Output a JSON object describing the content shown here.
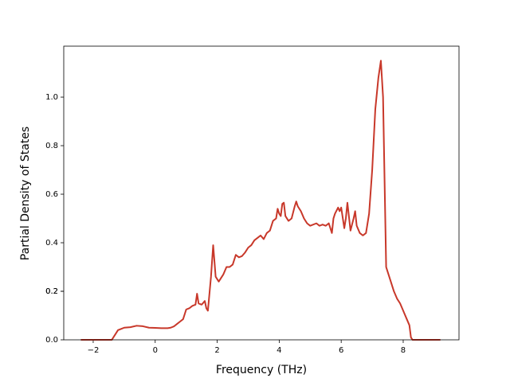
{
  "chart_data": {
    "type": "line",
    "xlabel": "Frequency (THz)",
    "ylabel": "Partial Density of States",
    "xlim": [
      -2.95,
      9.8
    ],
    "ylim": [
      0,
      1.21
    ],
    "xticks": [
      {
        "value": -2,
        "label": "−2"
      },
      0,
      2,
      4,
      6,
      8
    ],
    "yticks": [
      {
        "value": 0,
        "label": "0.0"
      },
      0.2,
      0.4,
      0.6,
      0.8,
      {
        "value": 1,
        "label": "1.0"
      },
      0.2
    ],
    "x": [
      -2.4,
      -1.4,
      -1.3,
      -1.2,
      -1.1,
      -1.0,
      -0.8,
      -0.6,
      -0.4,
      -0.2,
      0,
      0.2,
      0.4,
      0.5,
      0.6,
      0.7,
      0.8,
      0.9,
      1.0,
      1.1,
      1.2,
      1.3,
      1.35,
      1.4,
      1.5,
      1.6,
      1.65,
      1.7,
      1.8,
      1.87,
      1.95,
      2.05,
      2.2,
      2.3,
      2.4,
      2.5,
      2.6,
      2.7,
      2.8,
      2.9,
      3.0,
      3.1,
      3.2,
      3.3,
      3.4,
      3.5,
      3.6,
      3.7,
      3.8,
      3.9,
      3.95,
      4.0,
      4.05,
      4.1,
      4.15,
      4.2,
      4.3,
      4.4,
      4.5,
      4.55,
      4.6,
      4.7,
      4.8,
      4.9,
      5.0,
      5.2,
      5.3,
      5.4,
      5.5,
      5.6,
      5.7,
      5.75,
      5.8,
      5.9,
      5.95,
      6.0,
      6.1,
      6.15,
      6.2,
      6.3,
      6.4,
      6.45,
      6.5,
      6.6,
      6.7,
      6.8,
      6.9,
      7.0,
      7.1,
      7.2,
      7.28,
      7.35,
      7.45,
      7.6,
      7.7,
      7.8,
      7.9,
      8.0,
      8.1,
      8.2,
      8.25,
      8.3,
      9.2
    ],
    "series": [
      {
        "color": "#c8382a",
        "values": [
          0,
          0,
          0.02,
          0.04,
          0.045,
          0.05,
          0.052,
          0.058,
          0.056,
          0.05,
          0.049,
          0.048,
          0.048,
          0.05,
          0.055,
          0.065,
          0.075,
          0.085,
          0.125,
          0.13,
          0.14,
          0.145,
          0.19,
          0.15,
          0.145,
          0.16,
          0.13,
          0.12,
          0.26,
          0.39,
          0.26,
          0.24,
          0.27,
          0.3,
          0.3,
          0.31,
          0.35,
          0.34,
          0.345,
          0.36,
          0.38,
          0.39,
          0.41,
          0.42,
          0.43,
          0.415,
          0.44,
          0.45,
          0.49,
          0.5,
          0.54,
          0.52,
          0.51,
          0.56,
          0.565,
          0.51,
          0.49,
          0.5,
          0.55,
          0.57,
          0.55,
          0.53,
          0.5,
          0.48,
          0.47,
          0.48,
          0.47,
          0.475,
          0.47,
          0.48,
          0.44,
          0.5,
          0.52,
          0.545,
          0.53,
          0.545,
          0.46,
          0.5,
          0.565,
          0.45,
          0.5,
          0.53,
          0.47,
          0.44,
          0.43,
          0.44,
          0.52,
          0.7,
          0.95,
          1.08,
          1.15,
          1.0,
          0.3,
          0.24,
          0.2,
          0.17,
          0.15,
          0.12,
          0.09,
          0.06,
          0.01,
          0,
          0
        ]
      }
    ]
  }
}
